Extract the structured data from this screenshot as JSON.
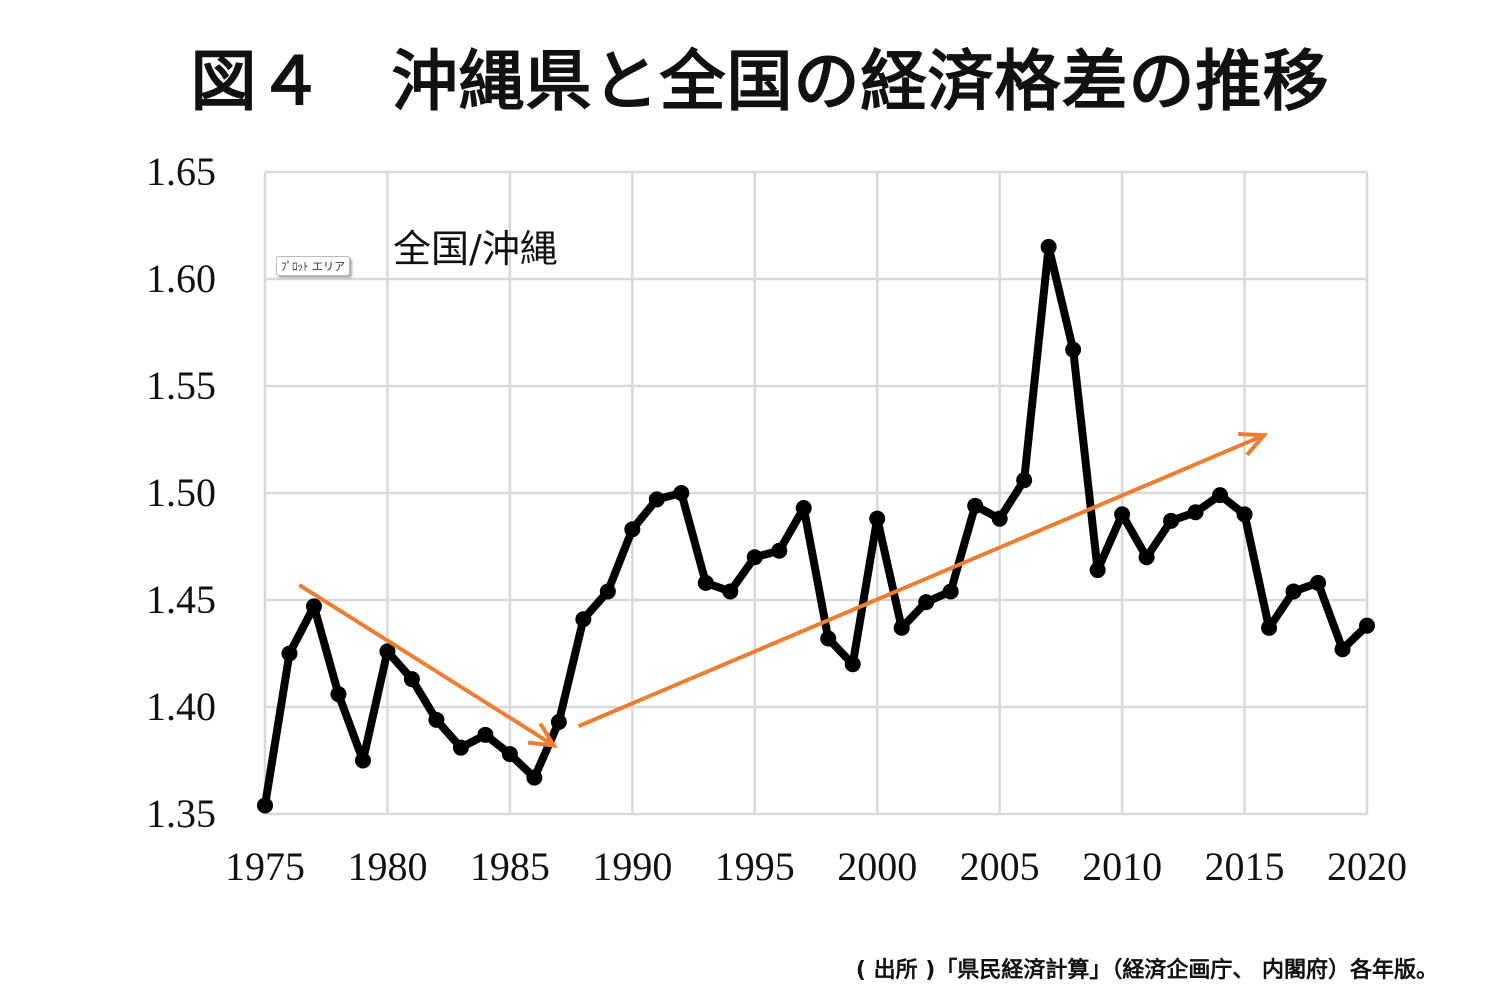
{
  "title": "図４　沖縄県と全国の経済格差の推移",
  "footnote": "( 出所 )「県民経済計算」（経済企画庁、 内閣府）各年版。",
  "tooltip": "ﾌﾟﾛｯﾄ エリア",
  "chart_data": {
    "type": "line",
    "title": "図４　沖縄県と全国の経済格差の推移",
    "series_label": "全国/沖縄",
    "xlim": [
      1975,
      2020
    ],
    "ylim": [
      1.35,
      1.65
    ],
    "x_ticks": [
      "1975",
      "1980",
      "1985",
      "1990",
      "1995",
      "2000",
      "2005",
      "2010",
      "2015",
      "2020"
    ],
    "y_ticks": [
      "1.35",
      "1.40",
      "1.45",
      "1.50",
      "1.55",
      "1.60",
      "1.65"
    ],
    "grid": true,
    "series": [
      {
        "name": "全国/沖縄",
        "color": "#000000",
        "x": [
          1975,
          1976,
          1977,
          1978,
          1979,
          1980,
          1981,
          1982,
          1983,
          1984,
          1985,
          1986,
          1987,
          1988,
          1989,
          1990,
          1991,
          1992,
          1993,
          1994,
          1995,
          1996,
          1997,
          1998,
          1999,
          2000,
          2001,
          2002,
          2003,
          2004,
          2005,
          2006,
          2007,
          2008,
          2009,
          2010,
          2011,
          2012,
          2013,
          2014,
          2015,
          2016,
          2017,
          2018,
          2019,
          2020
        ],
        "values": [
          1.354,
          1.425,
          1.447,
          1.406,
          1.375,
          1.426,
          1.413,
          1.394,
          1.381,
          1.387,
          1.378,
          1.367,
          1.393,
          1.441,
          1.454,
          1.483,
          1.497,
          1.5,
          1.458,
          1.454,
          1.47,
          1.473,
          1.493,
          1.432,
          1.42,
          1.488,
          1.437,
          1.449,
          1.454,
          1.494,
          1.488,
          1.506,
          1.615,
          1.567,
          1.464,
          1.49,
          1.47,
          1.487,
          1.491,
          1.499,
          1.49,
          1.437,
          1.454,
          1.458,
          1.427,
          1.438
        ]
      }
    ],
    "annotations": [
      {
        "type": "arrow",
        "color": "#ED7D31",
        "from": [
          1976.4,
          1.457
        ],
        "to": [
          1986.8,
          1.382
        ]
      },
      {
        "type": "arrow",
        "color": "#ED7D31",
        "from": [
          1987.8,
          1.391
        ],
        "to": [
          2015.8,
          1.527
        ]
      }
    ]
  }
}
